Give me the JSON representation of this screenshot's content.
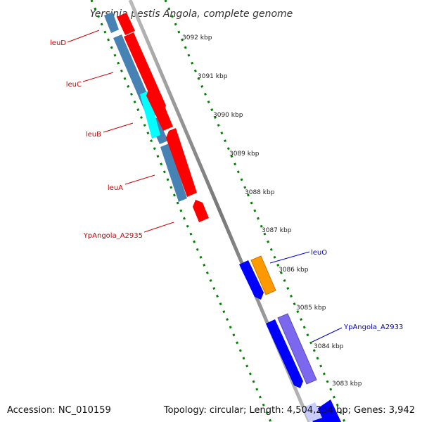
{
  "title": "Yersinia pestis Angola, complete genome",
  "footer": {
    "accession": "Accession: NC_010159",
    "topology": "Topology: circular; Length: 4,504,254 bp; Genes: 3,942"
  },
  "ticks": [
    "3092 kbp",
    "3091 kbp",
    "3090 kbp",
    "3089 kbp",
    "3088 kbp",
    "3087 kbp",
    "3086 kbp",
    "3085 kbp",
    "3084 kbp",
    "3083 kbp"
  ],
  "gene_labels_left": [
    "leuD",
    "leuC",
    "leuB",
    "leuA",
    "YpAngola_A2935"
  ],
  "gene_labels_right": [
    "leuO",
    "YpAngola_A2933"
  ],
  "colors": {
    "reverse_cds": "#ff0000",
    "reverse_gene": "#4682b4",
    "highlight": "#00ffff",
    "forward_cds": "#0000ff",
    "forward_gene": "#7b68ee",
    "orange": "#ff9900",
    "backbone": "#888888",
    "tick_green": "#008000",
    "label_red": "#cc0000",
    "label_blue": "#0000cc"
  }
}
